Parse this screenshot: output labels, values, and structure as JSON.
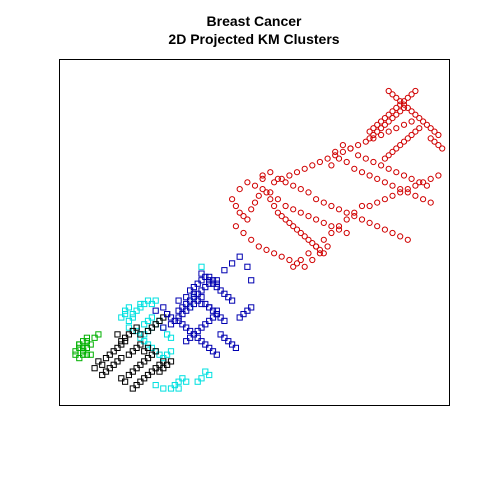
{
  "chart_data": {
    "type": "scatter",
    "title": "Breast Cancer",
    "subtitle": "2D Projected KM Clusters",
    "xlabel": "",
    "ylabel": "",
    "axes_visible": false,
    "grid": false,
    "legend": "none",
    "xlim": [
      0,
      100
    ],
    "ylim": [
      0,
      100
    ],
    "series": [
      {
        "marker": "square",
        "color": "#00b000",
        "x": [
          3,
          4,
          5,
          6,
          7,
          4,
          5,
          6,
          4,
          5,
          3,
          6,
          5,
          7,
          8,
          6,
          9,
          4,
          6,
          5
        ],
        "y": [
          14,
          13,
          15,
          16,
          14,
          17,
          18,
          16,
          17,
          14,
          15,
          18,
          16,
          17,
          19,
          19,
          20,
          16,
          14,
          15
        ]
      },
      {
        "marker": "square",
        "color": "#00e0e0",
        "x": [
          15,
          16,
          17,
          18,
          19,
          20,
          17,
          18,
          19,
          21,
          22,
          23,
          16,
          20,
          21,
          22,
          23,
          24,
          17,
          19,
          20,
          21,
          22,
          23,
          24,
          25,
          26,
          27,
          28,
          20,
          21,
          22,
          23,
          24,
          25,
          26,
          27,
          28,
          24,
          26,
          28,
          29,
          30,
          30,
          31,
          32,
          35,
          36,
          38,
          37,
          33,
          34,
          36
        ],
        "y": [
          25,
          27,
          28,
          26,
          27,
          29,
          24,
          25,
          22,
          23,
          24,
          25,
          26,
          28,
          29,
          30,
          29,
          30,
          22,
          21,
          20,
          20,
          21,
          22,
          23,
          24,
          22,
          20,
          19,
          19,
          18,
          17,
          16,
          15,
          14,
          13,
          14,
          15,
          5,
          4,
          4,
          5,
          4,
          6,
          7,
          6,
          6,
          7,
          8,
          9,
          28,
          31,
          40
        ]
      },
      {
        "marker": "square",
        "color": "#000000",
        "x": [
          8,
          9,
          10,
          11,
          12,
          10,
          11,
          12,
          13,
          14,
          15,
          13,
          14,
          15,
          16,
          17,
          18,
          19,
          20,
          21,
          22,
          15,
          16,
          17,
          18,
          19,
          20,
          21,
          22,
          23,
          24,
          18,
          19,
          20,
          21,
          22,
          23,
          24,
          25,
          26,
          14,
          15,
          16,
          17,
          18,
          19,
          20,
          22,
          23,
          24,
          25,
          26,
          27,
          25,
          26,
          27,
          28
        ],
        "y": [
          10,
          12,
          11,
          13,
          14,
          8,
          9,
          10,
          11,
          12,
          13,
          15,
          16,
          17,
          18,
          14,
          15,
          16,
          17,
          15,
          16,
          7,
          6,
          8,
          9,
          10,
          11,
          12,
          13,
          14,
          15,
          4,
          5,
          6,
          7,
          8,
          9,
          10,
          11,
          12,
          20,
          18,
          19,
          20,
          21,
          22,
          20,
          21,
          22,
          23,
          24,
          25,
          26,
          9,
          10,
          11,
          12
        ]
      },
      {
        "marker": "square",
        "color": "#0000b0",
        "x": [
          24,
          26,
          27,
          28,
          30,
          31,
          32,
          33,
          34,
          35,
          36,
          37,
          38,
          39,
          40,
          26,
          28,
          29,
          30,
          31,
          32,
          33,
          34,
          35,
          36,
          37,
          38,
          39,
          40,
          41,
          42,
          32,
          33,
          34,
          35,
          36,
          37,
          38,
          39,
          40,
          33,
          34,
          35,
          36,
          37,
          38,
          39,
          40,
          41,
          42,
          43,
          44,
          36,
          38,
          40,
          42,
          44,
          46,
          48,
          49,
          30,
          31,
          32,
          33,
          34,
          35,
          36,
          37,
          38,
          39,
          40,
          41,
          42,
          43,
          44,
          45,
          30,
          32,
          34,
          36,
          38,
          40,
          46,
          47,
          48,
          49
        ],
        "y": [
          27,
          28,
          26,
          25,
          27,
          28,
          29,
          30,
          31,
          32,
          33,
          34,
          35,
          36,
          35,
          22,
          23,
          24,
          25,
          26,
          27,
          28,
          29,
          30,
          31,
          29,
          28,
          27,
          26,
          25,
          24,
          18,
          19,
          20,
          21,
          22,
          23,
          24,
          25,
          26,
          33,
          34,
          35,
          36,
          37,
          36,
          35,
          34,
          33,
          32,
          31,
          30,
          38,
          37,
          36,
          39,
          41,
          43,
          40,
          36,
          24,
          23,
          22,
          21,
          20,
          19,
          18,
          17,
          16,
          15,
          14,
          20,
          19,
          18,
          17,
          16,
          30,
          31,
          32,
          29,
          28,
          27,
          25,
          26,
          27,
          28
        ]
      },
      {
        "marker": "circle",
        "color": "#d00000",
        "x": [
          44,
          45,
          46,
          47,
          48,
          49,
          50,
          51,
          52,
          53,
          54,
          55,
          56,
          57,
          58,
          59,
          60,
          61,
          62,
          63,
          64,
          65,
          66,
          67,
          68,
          45,
          47,
          49,
          51,
          53,
          55,
          57,
          59,
          61,
          63,
          65,
          67,
          69,
          46,
          48,
          50,
          52,
          54,
          56,
          58,
          60,
          62,
          64,
          66,
          68,
          70,
          72,
          74,
          52,
          54,
          56,
          58,
          60,
          62,
          64,
          66,
          68,
          70,
          72,
          74,
          76,
          78,
          80,
          82,
          84,
          86,
          88,
          90,
          70,
          72,
          74,
          76,
          78,
          80,
          82,
          84,
          86,
          88,
          90,
          92,
          94,
          96,
          71,
          73,
          75,
          77,
          79,
          81,
          83,
          85,
          87,
          89,
          91,
          93,
          95,
          80,
          81,
          82,
          83,
          84,
          85,
          86,
          87,
          88,
          89,
          90,
          91,
          92,
          80,
          81,
          82,
          83,
          84,
          85,
          86,
          87,
          88,
          89,
          84,
          85,
          86,
          87,
          88,
          89,
          90,
          91,
          92,
          93,
          85,
          86,
          87,
          88,
          89,
          90,
          91,
          92,
          93,
          94,
          95,
          96,
          97,
          98,
          96,
          97,
          98,
          99,
          80,
          82,
          84,
          86,
          88,
          90,
          92,
          94,
          96,
          98,
          60,
          62,
          64,
          66,
          68,
          70,
          72,
          74,
          76,
          78,
          55,
          57,
          59,
          61,
          63,
          65,
          67,
          69,
          71,
          73,
          75,
          77,
          79,
          81,
          83,
          85,
          87,
          89,
          91
        ],
        "y": [
          60,
          58,
          56,
          55,
          54,
          57,
          59,
          61,
          63,
          62,
          60,
          58,
          56,
          55,
          54,
          53,
          52,
          51,
          50,
          49,
          48,
          47,
          46,
          45,
          44,
          52,
          50,
          48,
          46,
          45,
          44,
          43,
          42,
          41,
          40,
          42,
          44,
          46,
          63,
          65,
          64,
          66,
          62,
          60,
          58,
          57,
          56,
          55,
          54,
          53,
          52,
          51,
          50,
          67,
          68,
          66,
          65,
          64,
          63,
          62,
          60,
          59,
          58,
          57,
          56,
          55,
          54,
          53,
          52,
          51,
          50,
          49,
          48,
          70,
          72,
          71,
          69,
          68,
          67,
          66,
          65,
          64,
          63,
          62,
          61,
          60,
          59,
          74,
          76,
          75,
          73,
          72,
          71,
          70,
          69,
          68,
          67,
          66,
          65,
          64,
          80,
          81,
          82,
          83,
          84,
          85,
          86,
          87,
          88,
          89,
          90,
          91,
          92,
          78,
          79,
          80,
          81,
          82,
          83,
          84,
          85,
          86,
          87,
          72,
          73,
          74,
          75,
          76,
          77,
          78,
          79,
          80,
          81,
          92,
          91,
          90,
          89,
          88,
          87,
          86,
          85,
          84,
          83,
          82,
          81,
          80,
          79,
          78,
          77,
          76,
          75,
          58,
          59,
          60,
          61,
          62,
          63,
          64,
          65,
          66,
          67,
          40,
          42,
          44,
          46,
          48,
          50,
          52,
          54,
          56,
          58,
          65,
          66,
          67,
          68,
          69,
          70,
          71,
          72,
          73,
          74,
          75,
          76,
          77,
          78,
          79,
          80,
          81,
          82,
          83
        ]
      }
    ]
  }
}
